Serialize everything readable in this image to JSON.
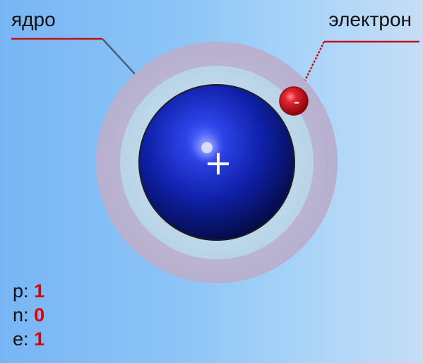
{
  "diagram": {
    "labels": {
      "nucleus": "ядро",
      "electron": "электрон"
    },
    "symbols": {
      "nucleus_charge": "+",
      "electron_charge": "-"
    },
    "counts": [
      {
        "name": "p",
        "separator": ":",
        "value": "1"
      },
      {
        "name": "n",
        "separator": ":",
        "value": "0"
      },
      {
        "name": "e",
        "separator": ":",
        "value": "1"
      }
    ],
    "colors": {
      "nucleus": "#1122b8",
      "electron": "#c0111b",
      "values": "#d80000",
      "leader_line": "#c1121b",
      "outer_ring": "#b9b3d2",
      "inner_ring": "#bfd7e7"
    }
  }
}
